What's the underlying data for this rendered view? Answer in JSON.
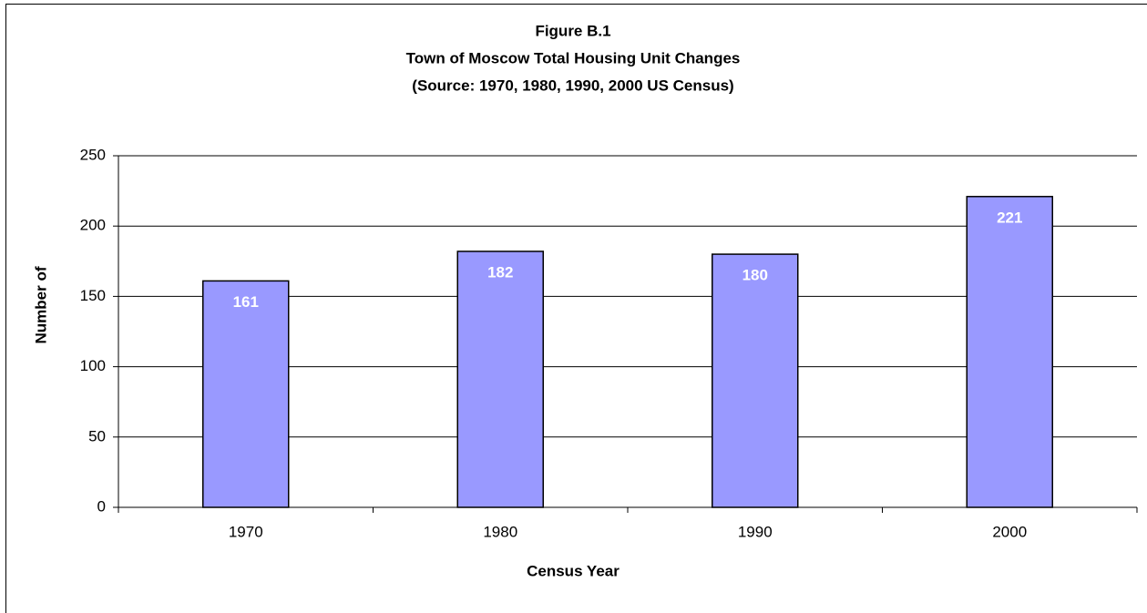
{
  "chart_data": {
    "type": "bar",
    "title": [
      "Figure B.1",
      "Town of Moscow Total Housing Unit Changes",
      "(Source: 1970, 1980, 1990, 2000 US Census)"
    ],
    "x_label": "Census Year",
    "y_label": "Number of",
    "categories": [
      "1970",
      "1980",
      "1990",
      "2000"
    ],
    "values": [
      161,
      182,
      180,
      221
    ],
    "color": "#9999ff",
    "ylim": [
      0,
      250
    ],
    "yticks": [
      0,
      50,
      100,
      150,
      200,
      250
    ],
    "grid": true
  }
}
